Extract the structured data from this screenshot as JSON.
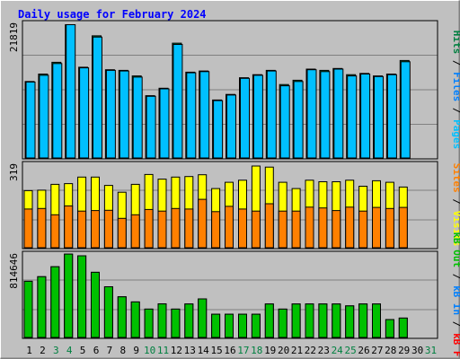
{
  "chart_data": {
    "type": "bar",
    "title": "Daily usage for February 2024",
    "categories": [
      "1",
      "2",
      "3",
      "4",
      "5",
      "6",
      "7",
      "8",
      "9",
      "10",
      "11",
      "12",
      "13",
      "14",
      "15",
      "16",
      "17",
      "18",
      "19",
      "20",
      "21",
      "22",
      "23",
      "24",
      "25",
      "26",
      "27",
      "28",
      "29",
      "30",
      "31"
    ],
    "weekend_days": [
      "3",
      "4",
      "10",
      "11",
      "17",
      "18",
      "24",
      "25",
      "31"
    ],
    "panels": [
      {
        "name": "hits-files-pages",
        "ymax_label": "21819",
        "ymax": 21819,
        "legend": [
          {
            "text": "Pages",
            "color": "#00c0ff"
          },
          {
            "text": " / ",
            "color": "#000000"
          },
          {
            "text": "Files",
            "color": "#0080ff"
          },
          {
            "text": " / ",
            "color": "#000000"
          },
          {
            "text": "Hits",
            "color": "#008040"
          }
        ],
        "series": [
          {
            "name": "Hits",
            "color": "#008040",
            "values": [
              12400,
              13600,
              15500,
              21600,
              14700,
              19800,
              14300,
              14200,
              13300,
              10100,
              11300,
              18600,
              13900,
              14100,
              9400,
              10300,
              13000,
              13500,
              14200,
              11900,
              12600,
              14400,
              14200,
              14500,
              13500,
              13700,
              13300,
              13600,
              15800,
              0,
              0
            ]
          },
          {
            "name": "Files",
            "color": "#00c0ff",
            "values": [
              12300,
              13400,
              15300,
              21600,
              14600,
              19600,
              14200,
              14100,
              13100,
              10000,
              11200,
              18400,
              13800,
              14000,
              9300,
              10200,
              12900,
              13400,
              14100,
              11700,
              12400,
              14300,
              14000,
              14400,
              13300,
              13600,
              13200,
              13500,
              15600,
              0,
              0
            ]
          }
        ]
      },
      {
        "name": "visits-sites",
        "ymax_label": "319",
        "ymax": 319,
        "legend": [
          {
            "text": "Visits",
            "color": "#ffff00"
          },
          {
            "text": " / ",
            "color": "#000000"
          },
          {
            "text": "Sites",
            "color": "#ff8000"
          }
        ],
        "series": [
          {
            "name": "Visits",
            "color": "#ffff00",
            "values": [
              218,
              220,
              242,
              245,
              270,
              270,
              238,
              212,
              242,
              280,
              262,
              270,
              272,
              279,
              226,
              250,
              258,
              312,
              308,
              250,
              226,
              258,
              252,
              252,
              258,
              235,
              256,
              250,
              232,
              0,
              0
            ]
          },
          {
            "name": "Sites",
            "color": "#ff8000",
            "values": [
              148,
              150,
              126,
              160,
              140,
              142,
              143,
              112,
              126,
              146,
              140,
              150,
              148,
              185,
              138,
              158,
              148,
              140,
              168,
              140,
              140,
              155,
              152,
              142,
              155,
              140,
              154,
              150,
              154,
              0,
              0
            ]
          }
        ]
      },
      {
        "name": "kbin-kbout",
        "ymax_label": "814646",
        "ymax": 814646,
        "legend": [
          {
            "text": "kB F",
            "color": "#ff0000"
          },
          {
            "text": " / ",
            "color": "#000000"
          },
          {
            "text": "kB In",
            "color": "#0080ff"
          },
          {
            "text": " / ",
            "color": "#000000"
          },
          {
            "text": "kB Out",
            "color": "#00c000"
          }
        ],
        "series": [
          {
            "name": "kB F",
            "color": "#ff0000",
            "values": [
              548000,
              593000,
              690000,
              814000,
              797000,
              636000,
              495000,
              397000,
              347000,
              277000,
              328000,
              277000,
              327000,
              377000,
              227000,
              227000,
              227000,
              227000,
              327000,
              277000,
              327000,
              327000,
              327000,
              327000,
              308000,
              327000,
              327000,
              174000,
              189000,
              0,
              0
            ]
          },
          {
            "name": "kB Out",
            "color": "#00c000",
            "values": [
              548000,
              593000,
              690000,
              814000,
              797000,
              636000,
              495000,
              397000,
              347000,
              277000,
              328000,
              277000,
              327000,
              377000,
              227000,
              227000,
              227000,
              227000,
              327000,
              277000,
              327000,
              327000,
              327000,
              327000,
              308000,
              327000,
              327000,
              174000,
              189000,
              0,
              0
            ]
          }
        ]
      }
    ]
  }
}
